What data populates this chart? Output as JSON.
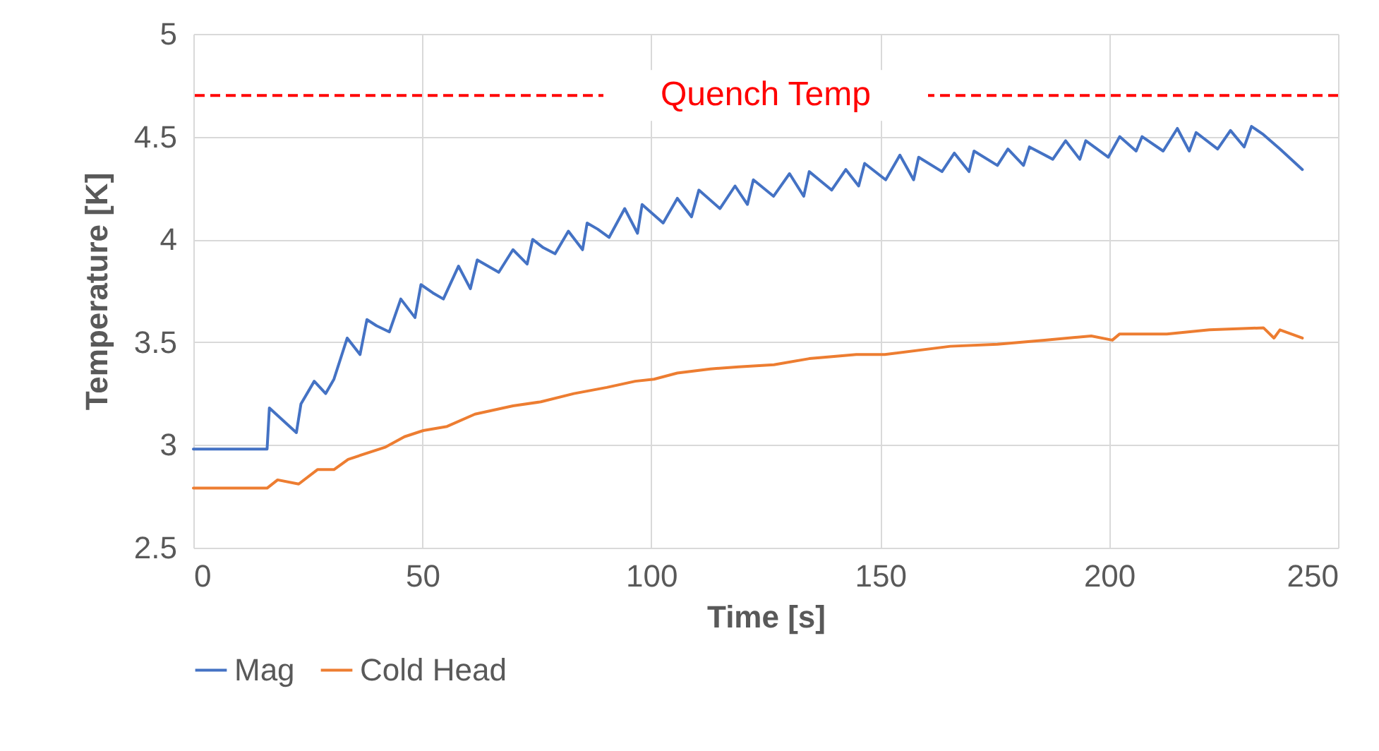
{
  "chart_data": {
    "type": "line",
    "xlabel": "Time [s]",
    "ylabel": "Temperature [K]",
    "xlim": [
      0,
      250
    ],
    "xticks": [
      0,
      50,
      100,
      150,
      200,
      250
    ],
    "ylim": [
      2.5,
      5
    ],
    "yticks": [
      2.5,
      3,
      3.5,
      4,
      4.5,
      5
    ],
    "grid": true,
    "legend": "bottom",
    "line_style": "solid",
    "marker": "none",
    "ref_lines": [
      {
        "axis": "y",
        "value": 4.7,
        "label": "Quench Temp",
        "color": "#ff0000",
        "line_style": "dashed"
      }
    ],
    "series": [
      {
        "name": "Mag",
        "color": "#4472c4",
        "x": [
          0,
          16.1,
          16.6,
          22.5,
          23.5,
          26.4,
          28.9,
          30.7,
          33.6,
          36.4,
          37.9,
          40,
          42.8,
          45.3,
          48.4,
          49.7,
          52.3,
          54.6,
          57.9,
          60.5,
          62,
          66.7,
          69.8,
          72.9,
          74.1,
          76.4,
          79,
          81.9,
          85,
          86,
          88.3,
          90.8,
          94.2,
          97,
          98,
          102.6,
          105.7,
          108.8,
          110.4,
          115,
          118.3,
          121,
          122.3,
          126.7,
          130.2,
          133.3,
          134.5,
          139.4,
          142.5,
          145.3,
          146.6,
          151.2,
          154.3,
          157.3,
          158.4,
          163.5,
          166.2,
          169.4,
          170.5,
          175.6,
          177.9,
          181.3,
          182.6,
          187.7,
          190.5,
          193.6,
          194.9,
          199.8,
          202.3,
          205.9,
          207.2,
          211.8,
          214.9,
          217.5,
          219,
          223.7,
          226.5,
          229.5,
          231.1,
          233.7,
          237.3,
          242.2
        ],
        "values": [
          2.98,
          2.98,
          3.18,
          3.06,
          3.2,
          3.31,
          3.25,
          3.32,
          3.52,
          3.44,
          3.61,
          3.58,
          3.55,
          3.71,
          3.62,
          3.78,
          3.74,
          3.71,
          3.87,
          3.76,
          3.9,
          3.84,
          3.95,
          3.88,
          4,
          3.96,
          3.93,
          4.04,
          3.95,
          4.08,
          4.05,
          4.01,
          4.15,
          4.03,
          4.17,
          4.08,
          4.2,
          4.11,
          4.24,
          4.15,
          4.26,
          4.17,
          4.29,
          4.21,
          4.32,
          4.21,
          4.33,
          4.24,
          4.34,
          4.26,
          4.37,
          4.29,
          4.41,
          4.29,
          4.4,
          4.33,
          4.42,
          4.33,
          4.43,
          4.36,
          4.44,
          4.36,
          4.45,
          4.39,
          4.48,
          4.39,
          4.48,
          4.4,
          4.5,
          4.43,
          4.5,
          4.43,
          4.54,
          4.43,
          4.52,
          4.44,
          4.53,
          4.45,
          4.55,
          4.51,
          4.44,
          4.34
        ]
      },
      {
        "name": "Cold Head",
        "color": "#ed7d31",
        "x": [
          0,
          16.1,
          18.4,
          23,
          27.1,
          30.7,
          33.8,
          42,
          46.1,
          50.2,
          55.4,
          61.5,
          69.8,
          75.9,
          83.1,
          90.3,
          96.5,
          100.6,
          105.7,
          112.9,
          119.1,
          126.8,
          134.5,
          144.8,
          151,
          165.3,
          175.6,
          185.9,
          196.1,
          200.7,
          202.3,
          212.6,
          221.9,
          233.7,
          236,
          237.3,
          242.2
        ],
        "values": [
          2.79,
          2.79,
          2.83,
          2.81,
          2.88,
          2.88,
          2.93,
          2.99,
          3.04,
          3.07,
          3.09,
          3.15,
          3.19,
          3.21,
          3.25,
          3.28,
          3.31,
          3.32,
          3.35,
          3.37,
          3.38,
          3.39,
          3.42,
          3.44,
          3.44,
          3.48,
          3.49,
          3.51,
          3.53,
          3.51,
          3.54,
          3.54,
          3.56,
          3.57,
          3.52,
          3.56,
          3.52
        ]
      }
    ]
  }
}
